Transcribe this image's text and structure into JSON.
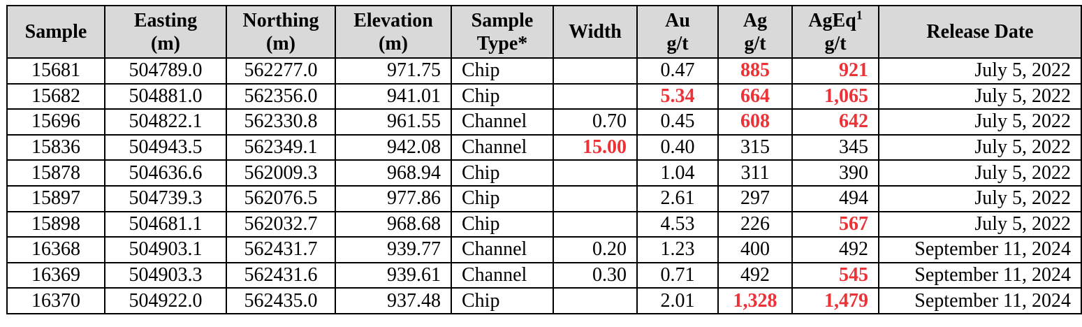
{
  "table": {
    "headers": {
      "sample": "Sample",
      "easting": [
        "Easting",
        "(m)"
      ],
      "northing": [
        "Northing",
        "(m)"
      ],
      "elevation": [
        "Elevation",
        "(m)"
      ],
      "sample_type": [
        "Sample",
        "Type*"
      ],
      "width": "Width",
      "au": [
        "Au",
        "g/t"
      ],
      "ag": [
        "Ag",
        "g/t"
      ],
      "ageq": [
        "AgEq",
        "1",
        "g/t"
      ],
      "release_date": "Release Date"
    },
    "highlight_color": "#ec3237",
    "header_background": "#d9d9d9",
    "rows": [
      {
        "sample": "15681",
        "easting": "504789.0",
        "northing": "562277.0",
        "elevation": "971.75",
        "type": "Chip",
        "width": "",
        "au": "0.47",
        "ag": "885",
        "ageq": "921",
        "date": "July 5, 2022",
        "highlight": [
          "ag",
          "ageq"
        ]
      },
      {
        "sample": "15682",
        "easting": "504881.0",
        "northing": "562356.0",
        "elevation": "941.01",
        "type": "Chip",
        "width": "",
        "au": "5.34",
        "ag": "664",
        "ageq": "1,065",
        "date": "July 5, 2022",
        "highlight": [
          "au",
          "ag",
          "ageq"
        ]
      },
      {
        "sample": "15696",
        "easting": "504822.1",
        "northing": "562330.8",
        "elevation": "961.55",
        "type": "Channel",
        "width": "0.70",
        "au": "0.45",
        "ag": "608",
        "ageq": "642",
        "date": "July 5, 2022",
        "highlight": [
          "ag",
          "ageq"
        ]
      },
      {
        "sample": "15836",
        "easting": "504943.5",
        "northing": "562349.1",
        "elevation": "942.08",
        "type": "Channel",
        "width": "15.00",
        "au": "0.40",
        "ag": "315",
        "ageq": "345",
        "date": "July 5, 2022",
        "highlight": [
          "width"
        ]
      },
      {
        "sample": "15878",
        "easting": "504636.6",
        "northing": "562009.3",
        "elevation": "968.94",
        "type": "Chip",
        "width": "",
        "au": "1.04",
        "ag": "311",
        "ageq": "390",
        "date": "July 5, 2022",
        "highlight": []
      },
      {
        "sample": "15897",
        "easting": "504739.3",
        "northing": "562076.5",
        "elevation": "977.86",
        "type": "Chip",
        "width": "",
        "au": "2.61",
        "ag": "297",
        "ageq": "494",
        "date": "July 5, 2022",
        "highlight": []
      },
      {
        "sample": "15898",
        "easting": "504681.1",
        "northing": "562032.7",
        "elevation": "968.68",
        "type": "Chip",
        "width": "",
        "au": "4.53",
        "ag": "226",
        "ageq": "567",
        "date": "July 5, 2022",
        "highlight": [
          "ageq"
        ]
      },
      {
        "sample": "16368",
        "easting": "504903.1",
        "northing": "562431.7",
        "elevation": "939.77",
        "type": "Channel",
        "width": "0.20",
        "au": "1.23",
        "ag": "400",
        "ageq": "492",
        "date": "September 11, 2024",
        "highlight": []
      },
      {
        "sample": "16369",
        "easting": "504903.3",
        "northing": "562431.6",
        "elevation": "939.61",
        "type": "Channel",
        "width": "0.30",
        "au": "0.71",
        "ag": "492",
        "ageq": "545",
        "date": "September 11, 2024",
        "highlight": [
          "ageq"
        ]
      },
      {
        "sample": "16370",
        "easting": "504922.0",
        "northing": "562435.0",
        "elevation": "937.48",
        "type": "Chip",
        "width": "",
        "au": "2.01",
        "ag": "1,328",
        "ageq": "1,479",
        "date": "September 11, 2024",
        "highlight": [
          "ag",
          "ageq"
        ]
      }
    ]
  }
}
